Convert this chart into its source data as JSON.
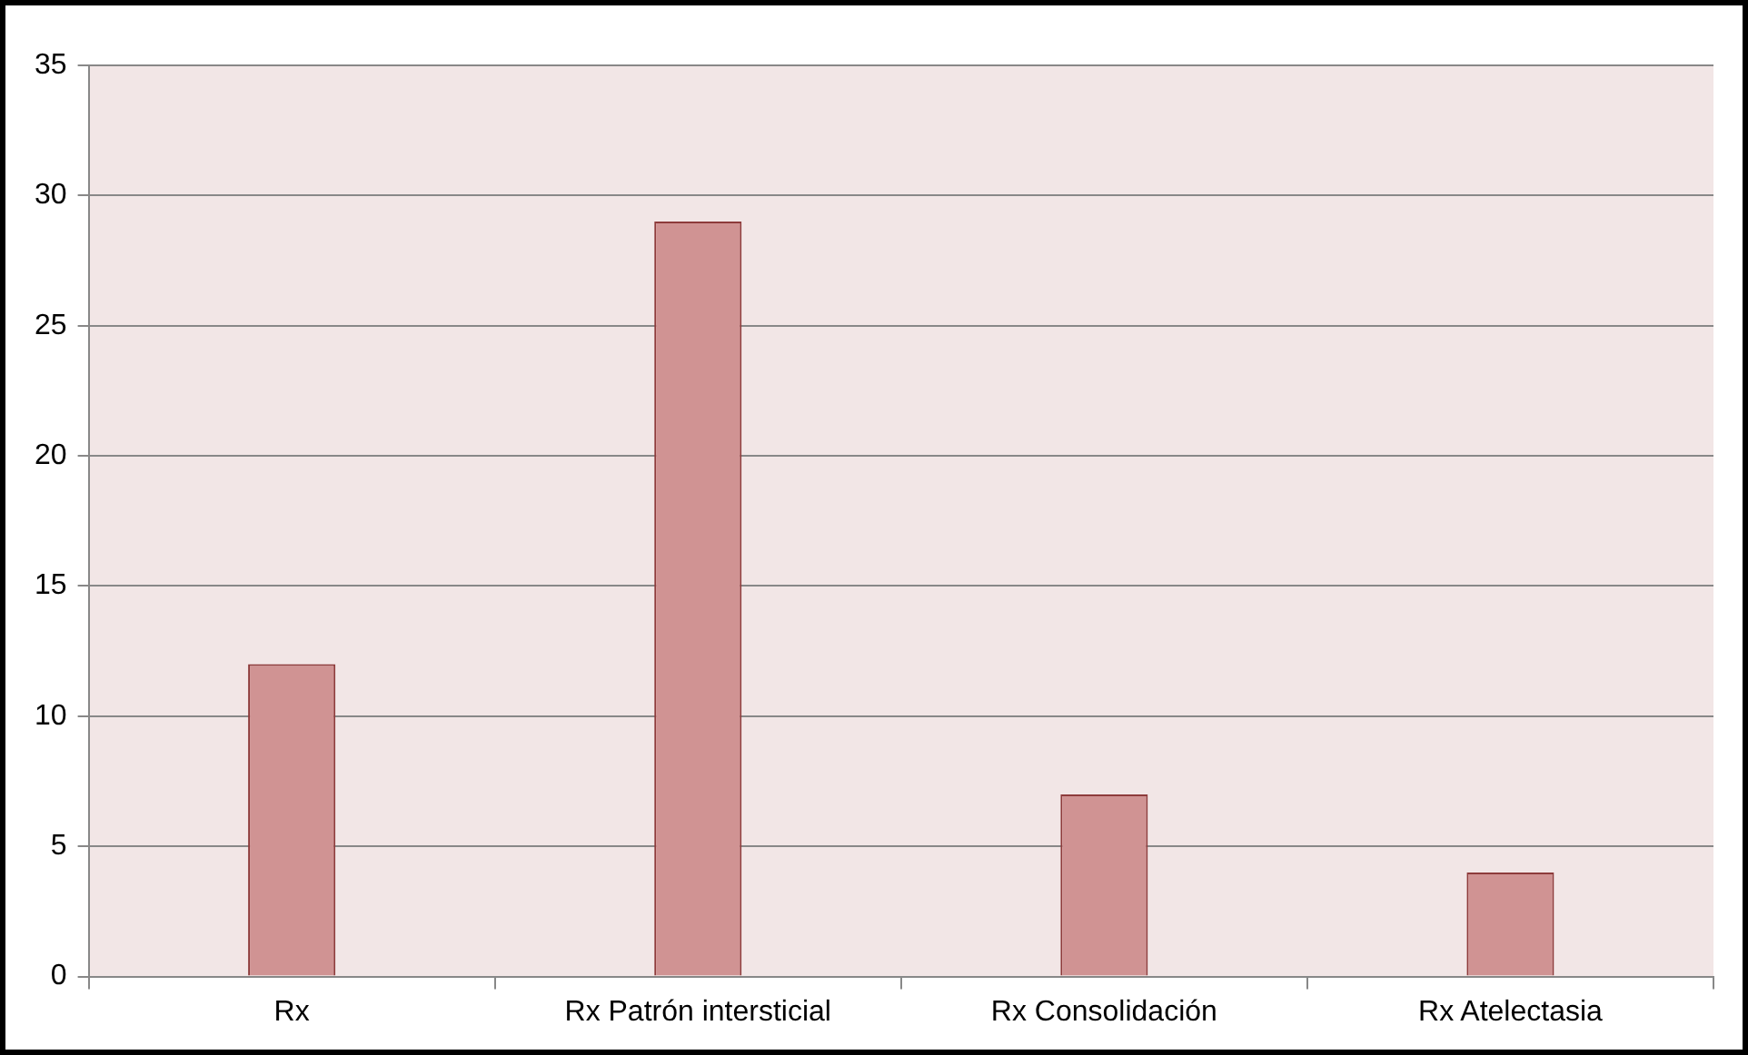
{
  "chart_data": {
    "type": "bar",
    "categories": [
      "Rx",
      "Rx Patrón intersticial",
      "Rx Consolidación",
      "Rx Atelectasia"
    ],
    "values": [
      12,
      29,
      7,
      4
    ],
    "color": "#d09393",
    "ylim": [
      0,
      35
    ],
    "yticks": [
      0,
      5,
      10,
      15,
      20,
      25,
      30,
      35
    ],
    "grid": "y",
    "legend": false
  }
}
